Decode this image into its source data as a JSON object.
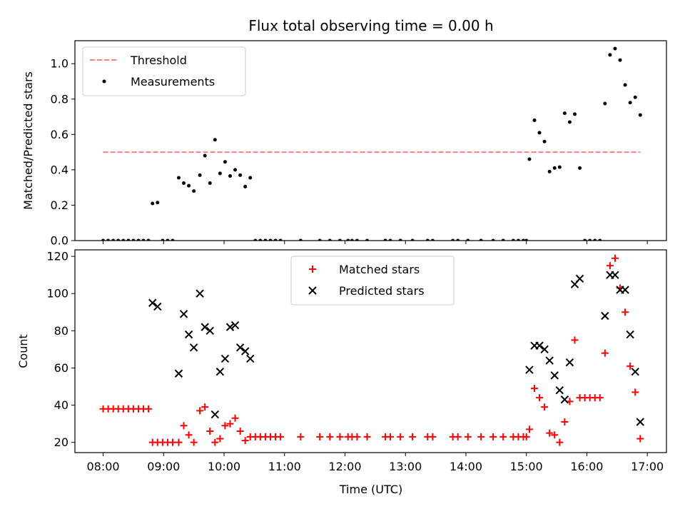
{
  "figure": {
    "title": "Flux total observing time = 0.00 h",
    "xlabel": "Time (UTC)"
  },
  "chart_data": [
    {
      "type": "scatter",
      "title": "Flux total observing time = 0.00 h",
      "xlabel": "",
      "ylabel": "Matched/Predicted stars",
      "xlim": [
        "07:32",
        "17:19"
      ],
      "ylim": [
        0,
        1.13
      ],
      "yticks": [
        0.0,
        0.2,
        0.4,
        0.6,
        0.8,
        1.0
      ],
      "ytick_labels": [
        "0.0",
        "0.2",
        "0.4",
        "0.6",
        "0.8",
        "1.0"
      ],
      "xticks": [
        "08:00",
        "09:00",
        "10:00",
        "11:00",
        "12:00",
        "13:00",
        "14:00",
        "15:00",
        "16:00",
        "17:00"
      ],
      "legend_position": "upper left",
      "grid": false,
      "series": [
        {
          "name": "Threshold",
          "kind": "line",
          "style": "dashed",
          "color": "#ff7f7f",
          "points": [
            {
              "x": "08:00",
              "y": 0.5
            },
            {
              "x": "16:53",
              "y": 0.5
            }
          ]
        },
        {
          "name": "Measurements",
          "kind": "scatter",
          "marker": "dot",
          "color": "#000000",
          "points": [
            {
              "x": "08:00",
              "y": 0
            },
            {
              "x": "08:05",
              "y": 0
            },
            {
              "x": "08:10",
              "y": 0
            },
            {
              "x": "08:15",
              "y": 0
            },
            {
              "x": "08:20",
              "y": 0
            },
            {
              "x": "08:25",
              "y": 0
            },
            {
              "x": "08:30",
              "y": 0
            },
            {
              "x": "08:35",
              "y": 0
            },
            {
              "x": "08:40",
              "y": 0
            },
            {
              "x": "08:45",
              "y": 0
            },
            {
              "x": "08:49",
              "y": 0.21
            },
            {
              "x": "08:54",
              "y": 0.215
            },
            {
              "x": "08:59",
              "y": 0
            },
            {
              "x": "09:04",
              "y": 0
            },
            {
              "x": "09:09",
              "y": 0
            },
            {
              "x": "09:15",
              "y": 0.355
            },
            {
              "x": "09:20",
              "y": 0.325
            },
            {
              "x": "09:25",
              "y": 0.31
            },
            {
              "x": "09:30",
              "y": 0.28
            },
            {
              "x": "09:36",
              "y": 0.37
            },
            {
              "x": "09:41",
              "y": 0.48
            },
            {
              "x": "09:46",
              "y": 0.325
            },
            {
              "x": "09:51",
              "y": 0.57
            },
            {
              "x": "09:56",
              "y": 0.38
            },
            {
              "x": "10:01",
              "y": 0.445
            },
            {
              "x": "10:06",
              "y": 0.365
            },
            {
              "x": "10:11",
              "y": 0.4
            },
            {
              "x": "10:16",
              "y": 0.37
            },
            {
              "x": "10:21",
              "y": 0.305
            },
            {
              "x": "10:26",
              "y": 0.355
            },
            {
              "x": "10:31",
              "y": 0
            },
            {
              "x": "10:36",
              "y": 0
            },
            {
              "x": "10:41",
              "y": 0
            },
            {
              "x": "10:46",
              "y": 0
            },
            {
              "x": "10:51",
              "y": 0
            },
            {
              "x": "10:56",
              "y": 0
            },
            {
              "x": "11:16",
              "y": 0
            },
            {
              "x": "11:35",
              "y": 0
            },
            {
              "x": "11:45",
              "y": 0
            },
            {
              "x": "11:55",
              "y": 0
            },
            {
              "x": "12:03",
              "y": 0
            },
            {
              "x": "12:07",
              "y": 0
            },
            {
              "x": "12:12",
              "y": 0
            },
            {
              "x": "12:22",
              "y": 0
            },
            {
              "x": "12:40",
              "y": 0
            },
            {
              "x": "12:45",
              "y": 0
            },
            {
              "x": "12:55",
              "y": 0
            },
            {
              "x": "13:07",
              "y": 0
            },
            {
              "x": "13:22",
              "y": 0
            },
            {
              "x": "13:27",
              "y": 0
            },
            {
              "x": "13:47",
              "y": 0
            },
            {
              "x": "13:52",
              "y": 0
            },
            {
              "x": "14:02",
              "y": 0
            },
            {
              "x": "14:15",
              "y": 0
            },
            {
              "x": "14:27",
              "y": 0
            },
            {
              "x": "14:37",
              "y": 0
            },
            {
              "x": "14:47",
              "y": 0
            },
            {
              "x": "14:52",
              "y": 0
            },
            {
              "x": "14:57",
              "y": 0
            },
            {
              "x": "15:00",
              "y": 0
            },
            {
              "x": "15:03",
              "y": 0.46
            },
            {
              "x": "15:08",
              "y": 0.68
            },
            {
              "x": "15:13",
              "y": 0.61
            },
            {
              "x": "15:18",
              "y": 0.56
            },
            {
              "x": "15:23",
              "y": 0.39
            },
            {
              "x": "15:28",
              "y": 0.41
            },
            {
              "x": "15:33",
              "y": 0.415
            },
            {
              "x": "15:38",
              "y": 0.72
            },
            {
              "x": "15:43",
              "y": 0.67
            },
            {
              "x": "15:48",
              "y": 0.715
            },
            {
              "x": "15:53",
              "y": 0.41
            },
            {
              "x": "15:58",
              "y": 0
            },
            {
              "x": "16:03",
              "y": 0
            },
            {
              "x": "16:08",
              "y": 0
            },
            {
              "x": "16:13",
              "y": 0
            },
            {
              "x": "16:18",
              "y": 0.775
            },
            {
              "x": "16:23",
              "y": 1.05
            },
            {
              "x": "16:28",
              "y": 1.085
            },
            {
              "x": "16:33",
              "y": 1.02
            },
            {
              "x": "16:38",
              "y": 0.88
            },
            {
              "x": "16:43",
              "y": 0.78
            },
            {
              "x": "16:48",
              "y": 0.81
            },
            {
              "x": "16:53",
              "y": 0.71
            }
          ]
        }
      ]
    },
    {
      "type": "scatter",
      "title": "",
      "xlabel": "Time (UTC)",
      "ylabel": "Count",
      "xlim": [
        "07:32",
        "17:19"
      ],
      "ylim": [
        14.5,
        123.5
      ],
      "yticks": [
        20,
        40,
        60,
        80,
        100,
        120
      ],
      "ytick_labels": [
        "20",
        "40",
        "60",
        "80",
        "100",
        "120"
      ],
      "xticks": [
        "08:00",
        "09:00",
        "10:00",
        "11:00",
        "12:00",
        "13:00",
        "14:00",
        "15:00",
        "16:00",
        "17:00"
      ],
      "xtick_labels": [
        "08:00",
        "09:00",
        "10:00",
        "11:00",
        "12:00",
        "13:00",
        "14:00",
        "15:00",
        "16:00",
        "17:00"
      ],
      "legend_position": "upper center",
      "grid": false,
      "series": [
        {
          "name": "Matched stars",
          "kind": "scatter",
          "marker": "plus",
          "color": "#ff0000",
          "points": [
            {
              "x": "08:00",
              "y": 38
            },
            {
              "x": "08:05",
              "y": 38
            },
            {
              "x": "08:10",
              "y": 38
            },
            {
              "x": "08:15",
              "y": 38
            },
            {
              "x": "08:20",
              "y": 38
            },
            {
              "x": "08:25",
              "y": 38
            },
            {
              "x": "08:30",
              "y": 38
            },
            {
              "x": "08:35",
              "y": 38
            },
            {
              "x": "08:40",
              "y": 38
            },
            {
              "x": "08:45",
              "y": 38
            },
            {
              "x": "08:49",
              "y": 20
            },
            {
              "x": "08:54",
              "y": 20
            },
            {
              "x": "08:59",
              "y": 20
            },
            {
              "x": "09:04",
              "y": 20
            },
            {
              "x": "09:09",
              "y": 20
            },
            {
              "x": "09:15",
              "y": 20
            },
            {
              "x": "09:20",
              "y": 29
            },
            {
              "x": "09:25",
              "y": 24
            },
            {
              "x": "09:30",
              "y": 20
            },
            {
              "x": "09:36",
              "y": 37
            },
            {
              "x": "09:41",
              "y": 39
            },
            {
              "x": "09:46",
              "y": 26
            },
            {
              "x": "09:51",
              "y": 20
            },
            {
              "x": "09:56",
              "y": 22
            },
            {
              "x": "10:01",
              "y": 29
            },
            {
              "x": "10:06",
              "y": 30
            },
            {
              "x": "10:11",
              "y": 33
            },
            {
              "x": "10:16",
              "y": 26
            },
            {
              "x": "10:21",
              "y": 21
            },
            {
              "x": "10:26",
              "y": 23
            },
            {
              "x": "10:31",
              "y": 23
            },
            {
              "x": "10:36",
              "y": 23
            },
            {
              "x": "10:41",
              "y": 23
            },
            {
              "x": "10:46",
              "y": 23
            },
            {
              "x": "10:51",
              "y": 23
            },
            {
              "x": "10:56",
              "y": 23
            },
            {
              "x": "11:16",
              "y": 23
            },
            {
              "x": "11:35",
              "y": 23
            },
            {
              "x": "11:45",
              "y": 23
            },
            {
              "x": "11:55",
              "y": 23
            },
            {
              "x": "12:03",
              "y": 23
            },
            {
              "x": "12:07",
              "y": 23
            },
            {
              "x": "12:12",
              "y": 23
            },
            {
              "x": "12:22",
              "y": 23
            },
            {
              "x": "12:40",
              "y": 23
            },
            {
              "x": "12:45",
              "y": 23
            },
            {
              "x": "12:55",
              "y": 23
            },
            {
              "x": "13:07",
              "y": 23
            },
            {
              "x": "13:22",
              "y": 23
            },
            {
              "x": "13:27",
              "y": 23
            },
            {
              "x": "13:47",
              "y": 23
            },
            {
              "x": "13:52",
              "y": 23
            },
            {
              "x": "14:02",
              "y": 23
            },
            {
              "x": "14:15",
              "y": 23
            },
            {
              "x": "14:27",
              "y": 23
            },
            {
              "x": "14:37",
              "y": 23
            },
            {
              "x": "14:47",
              "y": 23
            },
            {
              "x": "14:52",
              "y": 23
            },
            {
              "x": "14:57",
              "y": 23
            },
            {
              "x": "15:00",
              "y": 23
            },
            {
              "x": "15:03",
              "y": 27
            },
            {
              "x": "15:08",
              "y": 49
            },
            {
              "x": "15:13",
              "y": 44
            },
            {
              "x": "15:18",
              "y": 39
            },
            {
              "x": "15:23",
              "y": 25
            },
            {
              "x": "15:28",
              "y": 24
            },
            {
              "x": "15:33",
              "y": 20
            },
            {
              "x": "15:38",
              "y": 31
            },
            {
              "x": "15:43",
              "y": 42
            },
            {
              "x": "15:48",
              "y": 75
            },
            {
              "x": "15:53",
              "y": 44
            },
            {
              "x": "15:58",
              "y": 44
            },
            {
              "x": "16:03",
              "y": 44
            },
            {
              "x": "16:08",
              "y": 44
            },
            {
              "x": "16:13",
              "y": 44
            },
            {
              "x": "16:18",
              "y": 68
            },
            {
              "x": "16:23",
              "y": 115
            },
            {
              "x": "16:28",
              "y": 119
            },
            {
              "x": "16:33",
              "y": 103
            },
            {
              "x": "16:38",
              "y": 90
            },
            {
              "x": "16:43",
              "y": 61
            },
            {
              "x": "16:48",
              "y": 47
            },
            {
              "x": "16:53",
              "y": 22
            }
          ]
        },
        {
          "name": "Predicted stars",
          "kind": "scatter",
          "marker": "x",
          "color": "#000000",
          "points": [
            {
              "x": "08:49",
              "y": 95
            },
            {
              "x": "08:54",
              "y": 93
            },
            {
              "x": "09:15",
              "y": 57
            },
            {
              "x": "09:20",
              "y": 89
            },
            {
              "x": "09:25",
              "y": 78
            },
            {
              "x": "09:30",
              "y": 71
            },
            {
              "x": "09:36",
              "y": 100
            },
            {
              "x": "09:41",
              "y": 82
            },
            {
              "x": "09:46",
              "y": 80
            },
            {
              "x": "09:51",
              "y": 35
            },
            {
              "x": "09:56",
              "y": 58
            },
            {
              "x": "10:01",
              "y": 65
            },
            {
              "x": "10:06",
              "y": 82
            },
            {
              "x": "10:11",
              "y": 83
            },
            {
              "x": "10:16",
              "y": 71
            },
            {
              "x": "10:21",
              "y": 69
            },
            {
              "x": "10:26",
              "y": 65
            },
            {
              "x": "15:03",
              "y": 59
            },
            {
              "x": "15:08",
              "y": 72
            },
            {
              "x": "15:13",
              "y": 72
            },
            {
              "x": "15:18",
              "y": 70
            },
            {
              "x": "15:23",
              "y": 64
            },
            {
              "x": "15:28",
              "y": 56
            },
            {
              "x": "15:33",
              "y": 48
            },
            {
              "x": "15:38",
              "y": 43
            },
            {
              "x": "15:43",
              "y": 63
            },
            {
              "x": "15:48",
              "y": 105
            },
            {
              "x": "15:53",
              "y": 108
            },
            {
              "x": "16:18",
              "y": 88
            },
            {
              "x": "16:23",
              "y": 110
            },
            {
              "x": "16:28",
              "y": 110
            },
            {
              "x": "16:33",
              "y": 102
            },
            {
              "x": "16:38",
              "y": 102
            },
            {
              "x": "16:43",
              "y": 78
            },
            {
              "x": "16:48",
              "y": 58
            },
            {
              "x": "16:53",
              "y": 31
            }
          ]
        }
      ]
    }
  ]
}
